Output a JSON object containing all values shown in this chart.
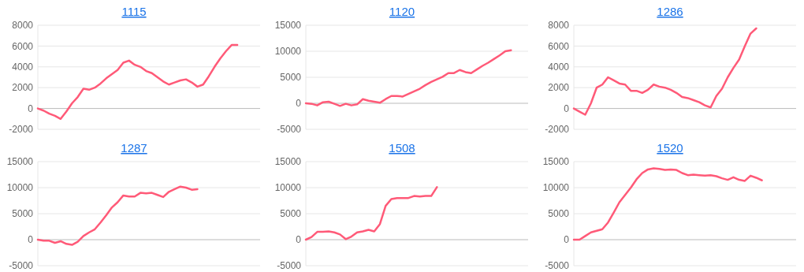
{
  "chart_data": [
    {
      "type": "line",
      "title": "1115",
      "categories": [
        null,
        null,
        null,
        null,
        null,
        null,
        null,
        null,
        null,
        null,
        null,
        null,
        null,
        null,
        null,
        null,
        null,
        null,
        null,
        null,
        null,
        null,
        null,
        null,
        null,
        null,
        null,
        null,
        null,
        null,
        null,
        null,
        null,
        null,
        null,
        null,
        null,
        null,
        null,
        null
      ],
      "series": [
        {
          "color": "#ff5a78",
          "values": [
            0,
            -200,
            -500,
            -700,
            -1000,
            -300,
            500,
            1100,
            1900,
            1800,
            2000,
            2400,
            2900,
            3300,
            3700,
            4400,
            4600,
            4200,
            4000,
            3600,
            3400,
            3000,
            2600,
            2300,
            2500,
            2700,
            2800,
            2500,
            2100,
            2300,
            3100,
            4000,
            4800,
            5500,
            6100,
            6100,
            null,
            null,
            null,
            null
          ]
        }
      ],
      "ylim": [
        -2000,
        8000
      ],
      "yticks": [
        -2000,
        0,
        2000,
        4000,
        6000,
        8000
      ],
      "grid": "y"
    },
    {
      "type": "line",
      "title": "1120",
      "categories": [
        null,
        null,
        null,
        null,
        null,
        null,
        null,
        null,
        null,
        null,
        null,
        null,
        null,
        null,
        null,
        null,
        null,
        null,
        null,
        null,
        null,
        null,
        null,
        null,
        null,
        null,
        null,
        null,
        null,
        null,
        null,
        null,
        null,
        null,
        null,
        null,
        null,
        null,
        null,
        null
      ],
      "series": [
        {
          "color": "#ff5a78",
          "values": [
            0,
            -100,
            -400,
            200,
            300,
            -100,
            -500,
            -100,
            -400,
            -200,
            800,
            500,
            300,
            100,
            800,
            1400,
            1400,
            1300,
            1800,
            2300,
            2800,
            3500,
            4100,
            4600,
            5100,
            5800,
            5800,
            6400,
            6000,
            5800,
            6500,
            7200,
            7800,
            8500,
            9200,
            10000,
            10200,
            null,
            null,
            null
          ]
        }
      ],
      "ylim": [
        -5000,
        15000
      ],
      "yticks": [
        -5000,
        0,
        5000,
        10000,
        15000
      ],
      "grid": "y"
    },
    {
      "type": "line",
      "title": "1286",
      "categories": [
        null,
        null,
        null,
        null,
        null,
        null,
        null,
        null,
        null,
        null,
        null,
        null,
        null,
        null,
        null,
        null,
        null,
        null,
        null,
        null,
        null,
        null,
        null,
        null,
        null,
        null,
        null,
        null,
        null,
        null,
        null,
        null,
        null,
        null,
        null,
        null,
        null,
        null,
        null,
        null
      ],
      "series": [
        {
          "color": "#ff5a78",
          "values": [
            0,
            -300,
            -600,
            500,
            2000,
            2300,
            3000,
            2700,
            2400,
            2300,
            1700,
            1700,
            1500,
            1800,
            2300,
            2100,
            2000,
            1800,
            1500,
            1100,
            1000,
            800,
            600,
            300,
            100,
            1200,
            1900,
            3000,
            3900,
            4700,
            6000,
            7200,
            7700,
            null,
            null,
            null,
            null,
            null,
            null,
            null
          ]
        }
      ],
      "ylim": [
        -2000,
        8000
      ],
      "yticks": [
        -2000,
        0,
        2000,
        4000,
        6000,
        8000
      ],
      "grid": "y"
    },
    {
      "type": "line",
      "title": "1287",
      "categories": [
        null,
        null,
        null,
        null,
        null,
        null,
        null,
        null,
        null,
        null,
        null,
        null,
        null,
        null,
        null,
        null,
        null,
        null,
        null,
        null,
        null,
        null,
        null,
        null,
        null,
        null,
        null,
        null,
        null,
        null,
        null,
        null,
        null,
        null,
        null,
        null,
        null,
        null,
        null,
        null
      ],
      "series": [
        {
          "color": "#ff5a78",
          "values": [
            0,
            -200,
            -200,
            -600,
            -300,
            -800,
            -1000,
            -400,
            700,
            1400,
            2000,
            3300,
            4700,
            6200,
            7200,
            8500,
            8300,
            8300,
            9000,
            8900,
            9000,
            8600,
            8200,
            9200,
            9700,
            10200,
            10000,
            9600,
            9700,
            null,
            null,
            null,
            null,
            null,
            null,
            null,
            null,
            null,
            null,
            null
          ]
        }
      ],
      "ylim": [
        -5000,
        15000
      ],
      "yticks": [
        -5000,
        0,
        5000,
        10000,
        15000
      ],
      "grid": "y"
    },
    {
      "type": "line",
      "title": "1508",
      "categories": [
        null,
        null,
        null,
        null,
        null,
        null,
        null,
        null,
        null,
        null,
        null,
        null,
        null,
        null,
        null,
        null,
        null,
        null,
        null,
        null,
        null,
        null,
        null,
        null,
        null,
        null,
        null,
        null,
        null,
        null,
        null,
        null,
        null,
        null,
        null,
        null,
        null,
        null,
        null,
        null
      ],
      "series": [
        {
          "color": "#ff5a78",
          "values": [
            0,
            500,
            1500,
            1500,
            1600,
            1400,
            1000,
            100,
            600,
            1400,
            1600,
            1900,
            1600,
            3000,
            6500,
            7800,
            8000,
            8000,
            8000,
            8400,
            8300,
            8400,
            8400,
            10100,
            null,
            null,
            null,
            null,
            null,
            null,
            null,
            null,
            null,
            null,
            null,
            null,
            null,
            null,
            null,
            null
          ]
        }
      ],
      "ylim": [
        -5000,
        15000
      ],
      "yticks": [
        -5000,
        0,
        5000,
        10000,
        15000
      ],
      "grid": "y"
    },
    {
      "type": "line",
      "title": "1520",
      "categories": [
        null,
        null,
        null,
        null,
        null,
        null,
        null,
        null,
        null,
        null,
        null,
        null,
        null,
        null,
        null,
        null,
        null,
        null,
        null,
        null,
        null,
        null,
        null,
        null,
        null,
        null,
        null,
        null,
        null,
        null,
        null,
        null,
        null,
        null,
        null,
        null,
        null,
        null,
        null,
        null
      ],
      "series": [
        {
          "color": "#ff5a78",
          "values": [
            0,
            0,
            700,
            1400,
            1700,
            2000,
            3300,
            5200,
            7200,
            8600,
            10000,
            11600,
            12800,
            13500,
            13700,
            13600,
            13400,
            13500,
            13400,
            12800,
            12400,
            12500,
            12400,
            12300,
            12400,
            12200,
            11800,
            11500,
            12000,
            11500,
            11300,
            12300,
            11900,
            11400,
            null,
            null,
            null,
            null,
            null,
            null
          ]
        }
      ],
      "ylim": [
        -5000,
        15000
      ],
      "yticks": [
        -5000,
        0,
        5000,
        10000,
        15000
      ],
      "grid": "y"
    }
  ]
}
